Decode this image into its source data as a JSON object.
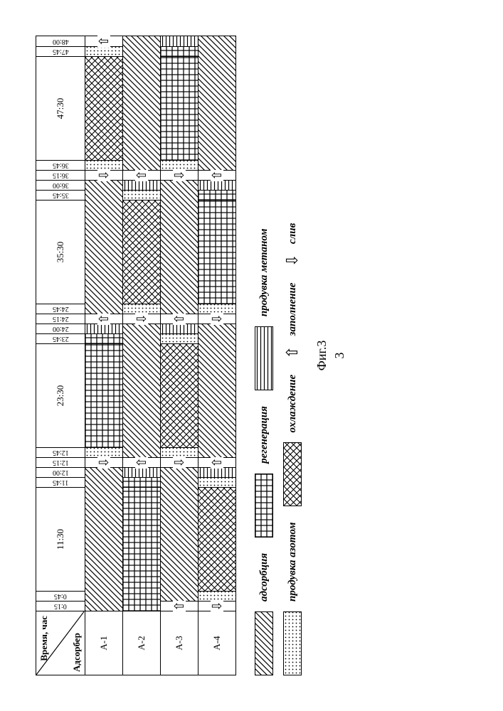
{
  "header": {
    "time": "Время, час",
    "adsorber": "Адсорбер"
  },
  "caption": "Фиг.3",
  "pagenum": "3",
  "totalMin": 2880,
  "timeColumns": [
    {
      "label": "0:15",
      "from": 0,
      "to": 15,
      "narrow": true
    },
    {
      "label": "0:45",
      "from": 15,
      "to": 45,
      "narrow": true
    },
    {
      "label": "11:30",
      "from": 45,
      "to": 690,
      "narrow": false
    },
    {
      "label": "11:45",
      "from": 690,
      "to": 705,
      "narrow": true
    },
    {
      "label": "12:00",
      "from": 705,
      "to": 720,
      "narrow": true
    },
    {
      "label": "12:15",
      "from": 720,
      "to": 735,
      "narrow": true
    },
    {
      "label": "12:45",
      "from": 735,
      "to": 765,
      "narrow": true
    },
    {
      "label": "23:30",
      "from": 765,
      "to": 1410,
      "narrow": false
    },
    {
      "label": "23:45",
      "from": 1410,
      "to": 1425,
      "narrow": true
    },
    {
      "label": "24:00",
      "from": 1425,
      "to": 1440,
      "narrow": true
    },
    {
      "label": "24:15",
      "from": 1440,
      "to": 1455,
      "narrow": true
    },
    {
      "label": "24:45",
      "from": 1455,
      "to": 1485,
      "narrow": true
    },
    {
      "label": "35:30",
      "from": 1485,
      "to": 2130,
      "narrow": false
    },
    {
      "label": "35:45",
      "from": 2130,
      "to": 2145,
      "narrow": true
    },
    {
      "label": "36:00",
      "from": 2145,
      "to": 2160,
      "narrow": true
    },
    {
      "label": "36:15",
      "from": 2160,
      "to": 2175,
      "narrow": true
    },
    {
      "label": "36:45",
      "from": 2175,
      "to": 2205,
      "narrow": true
    },
    {
      "label": "47:30",
      "from": 2205,
      "to": 2850,
      "narrow": false
    },
    {
      "label": "47:45",
      "from": 2850,
      "to": 2865,
      "narrow": true
    },
    {
      "label": "48:00",
      "from": 2865,
      "to": 2880,
      "narrow": true
    }
  ],
  "narrowWidth": 14,
  "rows": [
    {
      "label": "А-1",
      "segs": [
        {
          "from": 0,
          "to": 720,
          "fill": "ads"
        },
        {
          "from": 720,
          "to": 735,
          "fill": "drain"
        },
        {
          "from": 735,
          "to": 765,
          "fill": "purgeN"
        },
        {
          "from": 765,
          "to": 1410,
          "fill": "regen"
        },
        {
          "from": 1410,
          "to": 1425,
          "fill": "regen"
        },
        {
          "from": 1425,
          "to": 1440,
          "fill": "purgeM"
        },
        {
          "from": 1440,
          "to": 1455,
          "fill": "fill"
        },
        {
          "from": 1455,
          "to": 2160,
          "fill": "ads"
        },
        {
          "from": 2160,
          "to": 2175,
          "fill": "drain"
        },
        {
          "from": 2175,
          "to": 2205,
          "fill": "purgeN"
        },
        {
          "from": 2205,
          "to": 2850,
          "fill": "cool"
        },
        {
          "from": 2850,
          "to": 2865,
          "fill": "purgeN"
        },
        {
          "from": 2865,
          "to": 2880,
          "fill": "fill"
        }
      ]
    },
    {
      "label": "А-2",
      "segs": [
        {
          "from": 0,
          "to": 690,
          "fill": "regen"
        },
        {
          "from": 690,
          "to": 705,
          "fill": "regen"
        },
        {
          "from": 705,
          "to": 720,
          "fill": "purgeM"
        },
        {
          "from": 720,
          "to": 735,
          "fill": "fill"
        },
        {
          "from": 735,
          "to": 1440,
          "fill": "ads"
        },
        {
          "from": 1440,
          "to": 1455,
          "fill": "drain"
        },
        {
          "from": 1455,
          "to": 1485,
          "fill": "purgeN"
        },
        {
          "from": 1485,
          "to": 2130,
          "fill": "cool"
        },
        {
          "from": 2130,
          "to": 2145,
          "fill": "purgeN"
        },
        {
          "from": 2145,
          "to": 2160,
          "fill": "purgeM"
        },
        {
          "from": 2160,
          "to": 2175,
          "fill": "fill"
        },
        {
          "from": 2175,
          "to": 2880,
          "fill": "ads"
        }
      ]
    },
    {
      "label": "А-3",
      "segs": [
        {
          "from": 0,
          "to": 15,
          "fill": "fill"
        },
        {
          "from": 15,
          "to": 720,
          "fill": "ads"
        },
        {
          "from": 720,
          "to": 735,
          "fill": "drain"
        },
        {
          "from": 735,
          "to": 765,
          "fill": "purgeN"
        },
        {
          "from": 765,
          "to": 1410,
          "fill": "cool"
        },
        {
          "from": 1410,
          "to": 1425,
          "fill": "purgeN"
        },
        {
          "from": 1425,
          "to": 1440,
          "fill": "purgeM"
        },
        {
          "from": 1440,
          "to": 1455,
          "fill": "fill"
        },
        {
          "from": 1455,
          "to": 2160,
          "fill": "ads"
        },
        {
          "from": 2160,
          "to": 2175,
          "fill": "drain"
        },
        {
          "from": 2175,
          "to": 2205,
          "fill": "purgeN"
        },
        {
          "from": 2205,
          "to": 2850,
          "fill": "regen"
        },
        {
          "from": 2850,
          "to": 2865,
          "fill": "regen"
        },
        {
          "from": 2865,
          "to": 2880,
          "fill": "purgeM"
        }
      ]
    },
    {
      "label": "А-4",
      "segs": [
        {
          "from": 0,
          "to": 15,
          "fill": "drain"
        },
        {
          "from": 15,
          "to": 45,
          "fill": "purgeN"
        },
        {
          "from": 45,
          "to": 690,
          "fill": "cool"
        },
        {
          "from": 690,
          "to": 705,
          "fill": "purgeN"
        },
        {
          "from": 705,
          "to": 720,
          "fill": "purgeM"
        },
        {
          "from": 720,
          "to": 735,
          "fill": "fill"
        },
        {
          "from": 735,
          "to": 1440,
          "fill": "ads"
        },
        {
          "from": 1440,
          "to": 1455,
          "fill": "drain"
        },
        {
          "from": 1455,
          "to": 1485,
          "fill": "purgeN"
        },
        {
          "from": 1485,
          "to": 2130,
          "fill": "regen"
        },
        {
          "from": 2130,
          "to": 2145,
          "fill": "regen"
        },
        {
          "from": 2145,
          "to": 2160,
          "fill": "purgeM"
        },
        {
          "from": 2160,
          "to": 2175,
          "fill": "fill"
        },
        {
          "from": 2175,
          "to": 2880,
          "fill": "ads"
        }
      ]
    }
  ],
  "fills": {
    "ads": {
      "kind": "diag",
      "label": "адсорбция"
    },
    "regen": {
      "kind": "grid",
      "label": "регенерация"
    },
    "purgeM": {
      "kind": "hstripe",
      "label": "продувка метаном"
    },
    "purgeN": {
      "kind": "dots",
      "label": "продувка азотом"
    },
    "cool": {
      "kind": "cross",
      "label": "охлаждение"
    },
    "fill": {
      "kind": "arrowUp",
      "label": "заполнение"
    },
    "drain": {
      "kind": "arrowDn",
      "label": "слив"
    }
  },
  "legendRows": [
    [
      "ads",
      "regen",
      "purgeM"
    ],
    [
      "purgeN",
      "cool",
      "fill",
      "drain"
    ]
  ]
}
